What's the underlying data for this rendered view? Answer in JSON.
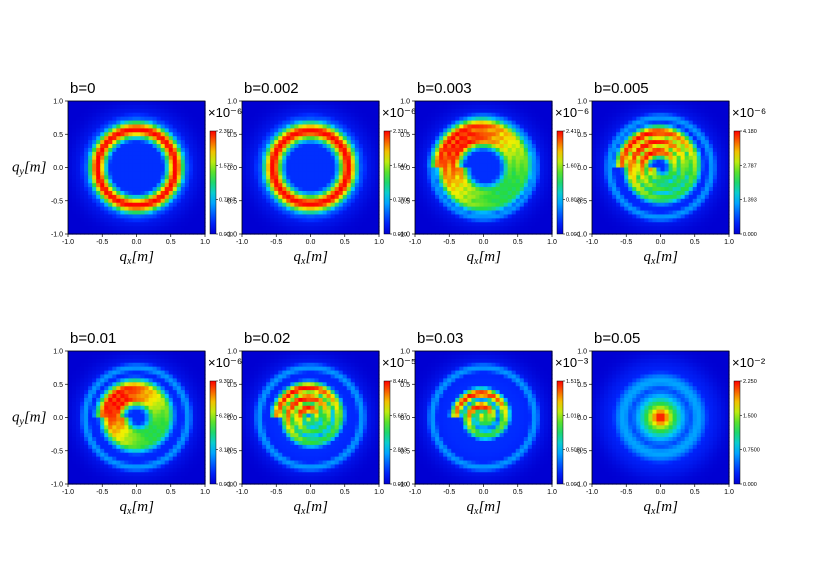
{
  "chart_data": [
    {
      "type": "heatmap",
      "title": "b=0",
      "pattern": "ring",
      "swirl": 0.0,
      "ring_radius": 0.57,
      "ring_width": 0.22,
      "core": 0.0,
      "cbar_ticks": [
        "2.360",
        "1.573",
        "0.7867",
        "0.000"
      ],
      "cbar_exp": "×10⁻⁶",
      "xlabel": "q_x[m]",
      "ylabel": "q_y[m]",
      "xticks": [
        "-1.0",
        "-0.5",
        "0.0",
        "0.5",
        "1.0"
      ],
      "yticks": [
        "1.0",
        "0.5",
        "0.0",
        "-0.5",
        "-1.0"
      ]
    },
    {
      "type": "heatmap",
      "title": "b=0.002",
      "pattern": "ring",
      "swirl": 0.6,
      "ring_radius": 0.55,
      "ring_width": 0.24,
      "core": 0.0,
      "cbar_ticks": [
        "2.310",
        "1.540",
        "0.7700",
        "0.000"
      ],
      "cbar_exp": "×10⁻⁶",
      "xlabel": "q_x[m]",
      "ylabel": "",
      "xticks": [
        "-1.0",
        "-0.5",
        "0.0",
        "0.5",
        "1.0"
      ],
      "yticks": [
        "1.0",
        "0.5",
        "0.0",
        "-0.5",
        "-1.0"
      ]
    },
    {
      "type": "heatmap",
      "title": "b=0.003",
      "pattern": "spiral",
      "swirl": 1.6,
      "ring_radius": 0.5,
      "ring_width": 0.22,
      "core": 0.0,
      "cbar_ticks": [
        "2.410",
        "1.607",
        "0.8033",
        "0.000"
      ],
      "cbar_exp": "×10⁻⁶",
      "xlabel": "q_x[m]",
      "ylabel": "",
      "xticks": [
        "-1.0",
        "-0.5",
        "0.0",
        "0.5",
        "1.0"
      ],
      "yticks": [
        "1.0",
        "0.5",
        "0.0",
        "-0.5",
        "-1.0"
      ]
    },
    {
      "type": "heatmap",
      "title": "b=0.005",
      "pattern": "spiral",
      "swirl": 2.4,
      "ring_radius": 0.35,
      "ring_width": 0.18,
      "core": 0.0,
      "cbar_ticks": [
        "4.180",
        "2.787",
        "1.393",
        "0.000"
      ],
      "cbar_exp": "×10⁻⁶",
      "xlabel": "q_x[m]",
      "ylabel": "",
      "xticks": [
        "-1.0",
        "-0.5",
        "0.0",
        "0.5",
        "1.0"
      ],
      "yticks": [
        "1.0",
        "0.5",
        "0.0",
        "-0.5",
        "-1.0"
      ]
    },
    {
      "type": "heatmap",
      "title": "b=0.01",
      "pattern": "spiral",
      "swirl": 1.3,
      "ring_radius": 0.35,
      "ring_width": 0.22,
      "core": 0.0,
      "cbar_ticks": [
        "9.300",
        "6.200",
        "3.100",
        "0.000"
      ],
      "cbar_exp": "×10⁻⁶",
      "xlabel": "q_x[m]",
      "ylabel": "q_y[m]",
      "xticks": [
        "-1.0",
        "-0.5",
        "0.0",
        "0.5",
        "1.0"
      ],
      "yticks": [
        "1.0",
        "0.5",
        "0.0",
        "-0.5",
        "-1.0"
      ]
    },
    {
      "type": "heatmap",
      "title": "b=0.02",
      "pattern": "spiral",
      "swirl": 2.6,
      "ring_radius": 0.25,
      "ring_width": 0.16,
      "core": 0.0,
      "cbar_ticks": [
        "8.440",
        "5.627",
        "2.813",
        "0.000"
      ],
      "cbar_exp": "×10⁻⁵",
      "xlabel": "q_x[m]",
      "ylabel": "",
      "xticks": [
        "-1.0",
        "-0.5",
        "0.0",
        "0.5",
        "1.0"
      ],
      "yticks": [
        "1.0",
        "0.5",
        "0.0",
        "-0.5",
        "-1.0"
      ]
    },
    {
      "type": "heatmap",
      "title": "b=0.03",
      "pattern": "spiral",
      "swirl": 3.2,
      "ring_radius": 0.12,
      "ring_width": 0.14,
      "core": 0.6,
      "cbar_ticks": [
        "1.515",
        "1.010",
        "0.5050",
        "0.000"
      ],
      "cbar_exp": "×10⁻³",
      "xlabel": "q_x[m]",
      "ylabel": "",
      "xticks": [
        "-1.0",
        "-0.5",
        "0.0",
        "0.5",
        "1.0"
      ],
      "yticks": [
        "1.0",
        "0.5",
        "0.0",
        "-0.5",
        "-1.0"
      ]
    },
    {
      "type": "heatmap",
      "title": "b=0.05",
      "pattern": "blob",
      "swirl": 0.0,
      "ring_radius": 0.0,
      "ring_width": 0.0,
      "core": 1.0,
      "cbar_ticks": [
        "2.250",
        "1.500",
        "0.7500",
        "0.000"
      ],
      "cbar_exp": "×10⁻²",
      "xlabel": "q_x[m]",
      "ylabel": "",
      "xticks": [
        "-1.0",
        "-0.5",
        "0.0",
        "0.5",
        "1.0"
      ],
      "yticks": [
        "1.0",
        "0.5",
        "0.0",
        "-0.5",
        "-1.0"
      ]
    }
  ]
}
